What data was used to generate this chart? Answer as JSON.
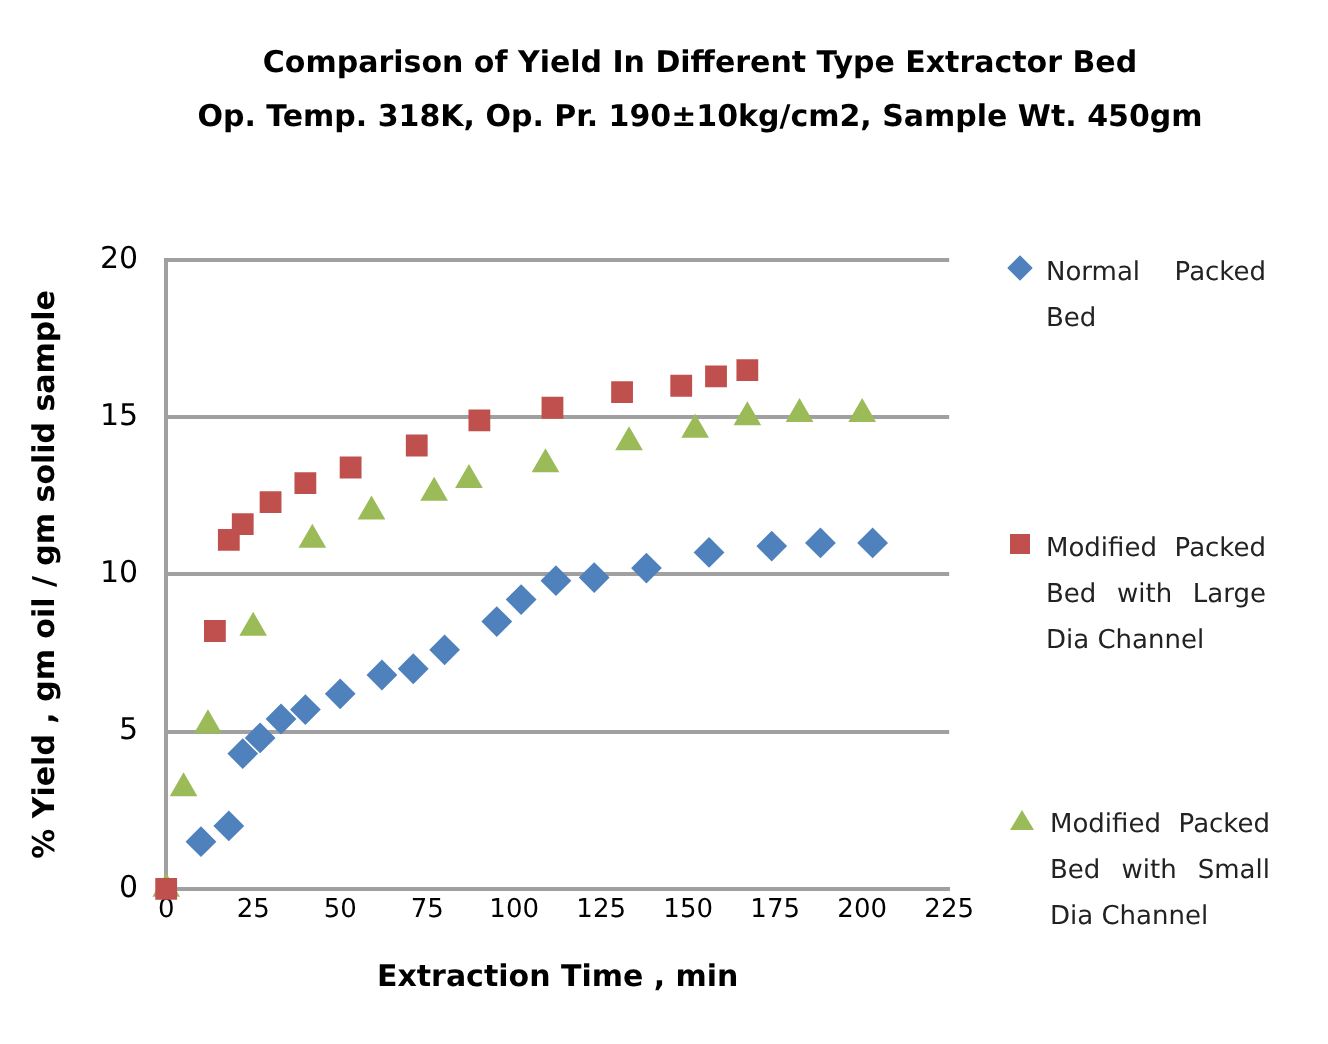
{
  "chart_data": {
    "type": "scatter",
    "title": "Comparison of Yield In Different Type Extractor Bed",
    "subtitle": "Op. Temp. 318K, Op. Pr. 190±10kg/cm2, Sample Wt. 450gm",
    "xlabel": "Extraction Time , min",
    "ylabel": "% Yield , gm oil / gm solid sample",
    "xlim": [
      0,
      225
    ],
    "xticks": [
      0,
      25,
      50,
      75,
      100,
      125,
      150,
      175,
      200,
      225
    ],
    "ylim": [
      0,
      20
    ],
    "yticks": [
      0,
      5,
      10,
      15,
      20
    ],
    "grid": "y",
    "legend": "right",
    "series": [
      {
        "name": "Normal Packed Bed",
        "color": "#4f81bd",
        "marker": "diamond",
        "x": [
          10,
          18,
          22,
          27,
          33,
          40,
          50,
          62,
          71,
          80,
          95,
          102,
          112,
          123,
          138,
          156,
          174,
          188,
          203
        ],
        "values": [
          1.5,
          2.0,
          4.3,
          4.8,
          5.4,
          5.7,
          6.2,
          6.8,
          7.0,
          7.6,
          8.5,
          9.2,
          9.8,
          9.9,
          10.2,
          10.7,
          10.9,
          11.0,
          11.0
        ]
      },
      {
        "name": "Modified Packed Bed with Large Dia Channel",
        "color": "#c0504d",
        "marker": "square",
        "x": [
          0,
          14,
          18,
          22,
          30,
          40,
          53,
          72,
          90,
          111,
          131,
          148,
          158,
          167
        ],
        "values": [
          0,
          8.2,
          11.1,
          11.6,
          12.3,
          12.9,
          13.4,
          14.1,
          14.9,
          15.3,
          15.8,
          16.0,
          16.3,
          16.5
        ]
      },
      {
        "name": "Modified Packed Bed with Small Dia Channel",
        "color": "#9bbb59",
        "marker": "triangle",
        "x": [
          0,
          5,
          12,
          25,
          42,
          59,
          77,
          87,
          109,
          133,
          152,
          167,
          182,
          200
        ],
        "values": [
          0,
          3.2,
          5.2,
          8.3,
          11.1,
          12.0,
          12.6,
          13.0,
          13.5,
          14.2,
          14.6,
          15.0,
          15.1,
          15.1
        ]
      }
    ]
  }
}
